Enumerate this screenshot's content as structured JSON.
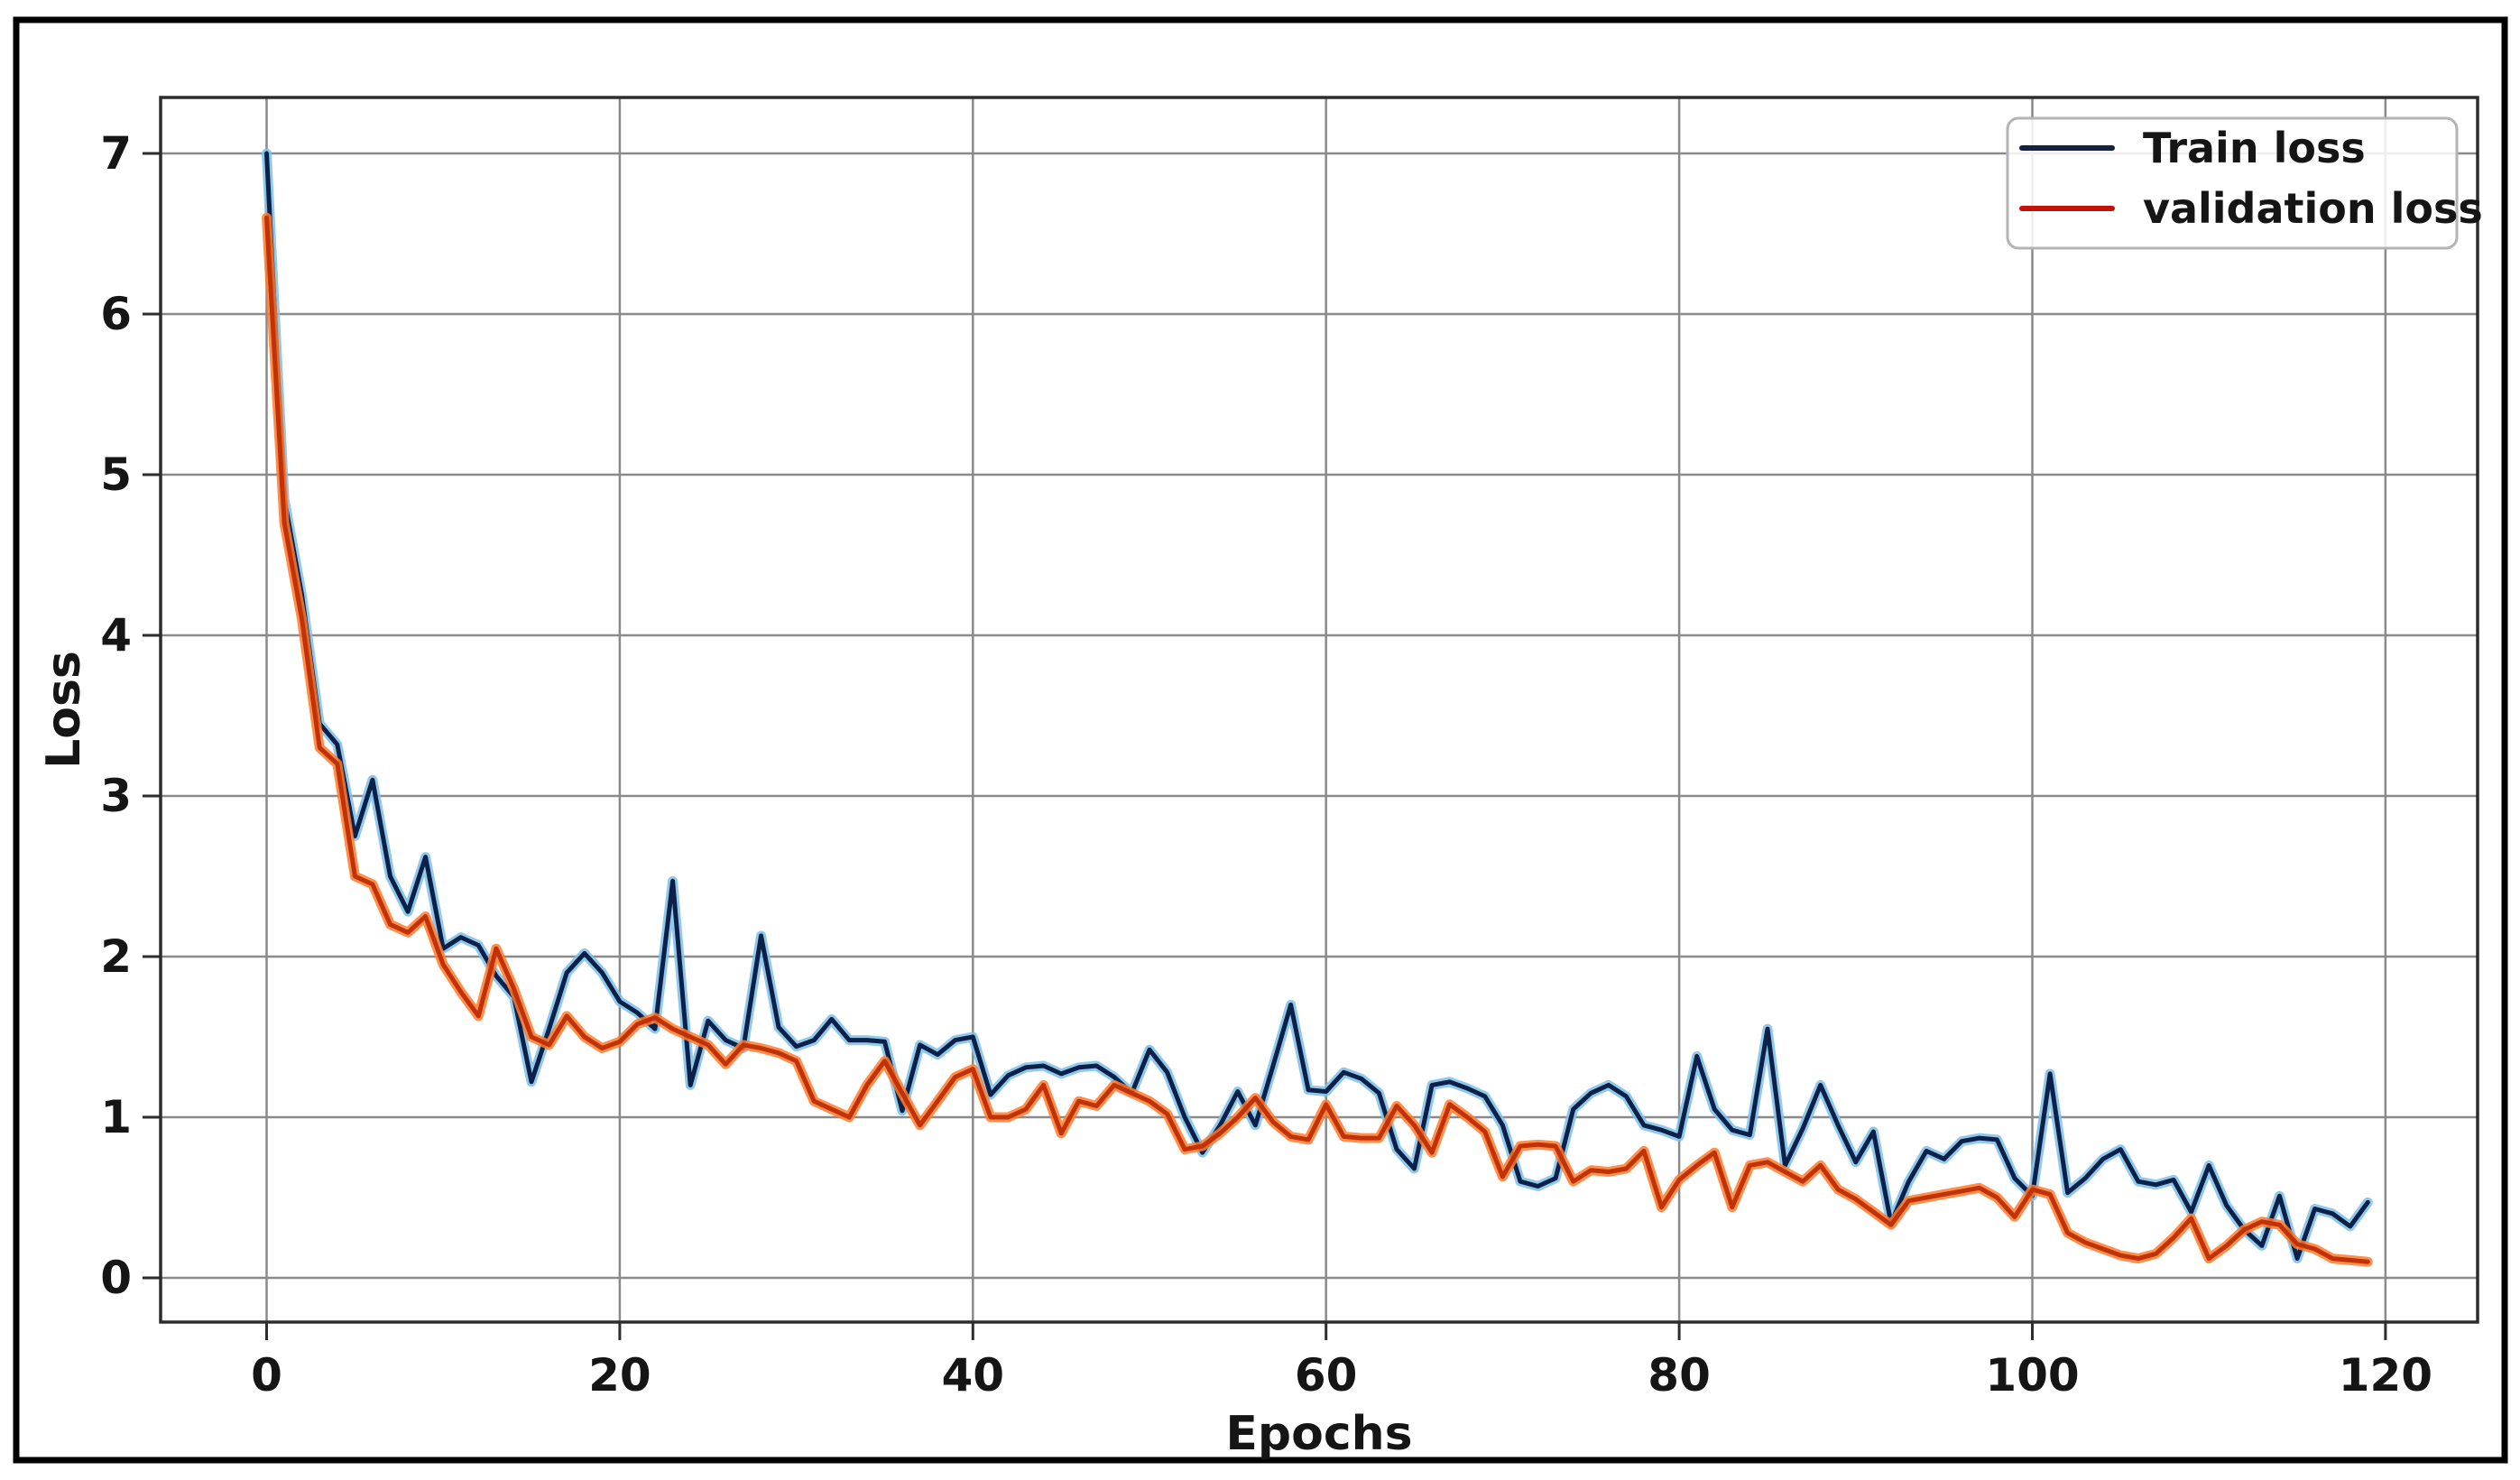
{
  "figure": {
    "background_color": "#ffffff",
    "outer_border_color": "#000000"
  },
  "chart_data": {
    "type": "line",
    "title": "",
    "xlabel": "Epochs",
    "ylabel": "Loss",
    "x_ticks": [
      "0",
      "20",
      "40",
      "60",
      "80",
      "100",
      "120"
    ],
    "x_tick_values": [
      0,
      20,
      40,
      60,
      80,
      100,
      120
    ],
    "y_ticks": [
      "0",
      "1",
      "2",
      "3",
      "4",
      "5",
      "6",
      "7"
    ],
    "y_tick_values": [
      0,
      1,
      2,
      3,
      4,
      5,
      6,
      7
    ],
    "xlim": [
      -6,
      125
    ],
    "ylim": [
      -0.28,
      7.35
    ],
    "grid": true,
    "grid_color": "#8a8a8a",
    "legend_position": "upper right",
    "x_start": 0,
    "x_step": 1,
    "series": [
      {
        "name": "Train loss",
        "color": "#0b2149",
        "halo_color": "#7fc0e8",
        "legend_color": "#16203f",
        "values": [
          7.0,
          4.85,
          4.25,
          3.45,
          3.32,
          2.75,
          3.1,
          2.5,
          2.28,
          2.62,
          2.05,
          2.12,
          2.07,
          1.88,
          1.75,
          1.22,
          1.55,
          1.9,
          2.02,
          1.9,
          1.72,
          1.65,
          1.55,
          2.47,
          1.2,
          1.6,
          1.48,
          1.43,
          2.13,
          1.56,
          1.44,
          1.48,
          1.61,
          1.48,
          1.48,
          1.47,
          1.04,
          1.45,
          1.39,
          1.48,
          1.5,
          1.14,
          1.26,
          1.31,
          1.32,
          1.27,
          1.31,
          1.32,
          1.25,
          1.15,
          1.42,
          1.28,
          1.0,
          0.78,
          0.95,
          1.16,
          0.95,
          1.32,
          1.7,
          1.17,
          1.16,
          1.28,
          1.24,
          1.15,
          0.8,
          0.68,
          1.2,
          1.22,
          1.18,
          1.13,
          0.95,
          0.6,
          0.57,
          0.62,
          1.05,
          1.15,
          1.2,
          1.13,
          0.95,
          0.92,
          0.88,
          1.38,
          1.05,
          0.92,
          0.89,
          1.55,
          0.7,
          0.93,
          1.2,
          0.95,
          0.72,
          0.91,
          0.34,
          0.6,
          0.79,
          0.74,
          0.85,
          0.87,
          0.86,
          0.62,
          0.51,
          1.27,
          0.53,
          0.62,
          0.74,
          0.8,
          0.6,
          0.58,
          0.61,
          0.41,
          0.7,
          0.45,
          0.3,
          0.2,
          0.51,
          0.12,
          0.43,
          0.4,
          0.32,
          0.47
        ]
      },
      {
        "name": "validation loss",
        "color": "#c23208",
        "halo_color": "#ff7b2e",
        "legend_color": "#c51209",
        "values": [
          6.6,
          4.7,
          4.1,
          3.3,
          3.2,
          2.5,
          2.45,
          2.2,
          2.15,
          2.25,
          1.95,
          1.78,
          1.63,
          2.05,
          1.8,
          1.5,
          1.45,
          1.63,
          1.5,
          1.43,
          1.47,
          1.58,
          1.62,
          1.55,
          1.5,
          1.45,
          1.33,
          1.45,
          1.43,
          1.4,
          1.35,
          1.1,
          1.05,
          1.0,
          1.2,
          1.35,
          1.15,
          0.95,
          1.1,
          1.25,
          1.3,
          1.0,
          1.0,
          1.05,
          1.2,
          0.9,
          1.1,
          1.07,
          1.2,
          1.15,
          1.1,
          1.02,
          0.8,
          0.82,
          0.9,
          1.0,
          1.12,
          0.97,
          0.88,
          0.86,
          1.08,
          0.88,
          0.87,
          0.87,
          1.07,
          0.95,
          0.78,
          1.08,
          1.0,
          0.91,
          0.63,
          0.82,
          0.83,
          0.82,
          0.6,
          0.67,
          0.66,
          0.68,
          0.79,
          0.44,
          0.61,
          0.7,
          0.78,
          0.44,
          0.7,
          0.72,
          0.66,
          0.6,
          0.7,
          0.55,
          0.49,
          0.41,
          0.33,
          0.48,
          0.5,
          0.52,
          0.54,
          0.56,
          0.5,
          0.38,
          0.55,
          0.52,
          0.28,
          0.22,
          0.18,
          0.14,
          0.12,
          0.15,
          0.25,
          0.37,
          0.12,
          0.2,
          0.3,
          0.35,
          0.33,
          0.21,
          0.18,
          0.12,
          0.11,
          0.1
        ]
      }
    ]
  }
}
